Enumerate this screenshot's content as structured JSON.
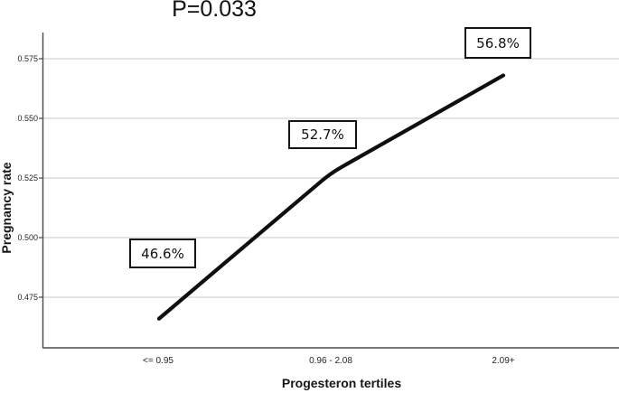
{
  "chart_data": {
    "type": "line",
    "title": "P=0.033",
    "xlabel": "Progesteron tertiles",
    "ylabel": "Pregnancy rate",
    "categories": [
      "<= 0.95",
      "0.96 - 2.08",
      "2.09+"
    ],
    "series": [
      {
        "name": "Pregnancy rate",
        "values": [
          0.466,
          0.527,
          0.568
        ]
      }
    ],
    "point_labels": [
      "46.6%",
      "52.7%",
      "56.8%"
    ],
    "yticks": [
      0.475,
      0.5,
      0.525,
      0.55,
      0.575
    ],
    "ytick_labels": [
      "0.475",
      "0.500",
      "0.525",
      "0.550",
      "0.575"
    ],
    "ylim": [
      0.454,
      0.586
    ],
    "grid": "horizontal-only",
    "legend": "none",
    "colors": {
      "line": "#0f0f0f",
      "gridline": "#c9c9c9",
      "axis": "#4a4a4a",
      "label_box_border": "#141414",
      "background": "#ffffff"
    }
  }
}
